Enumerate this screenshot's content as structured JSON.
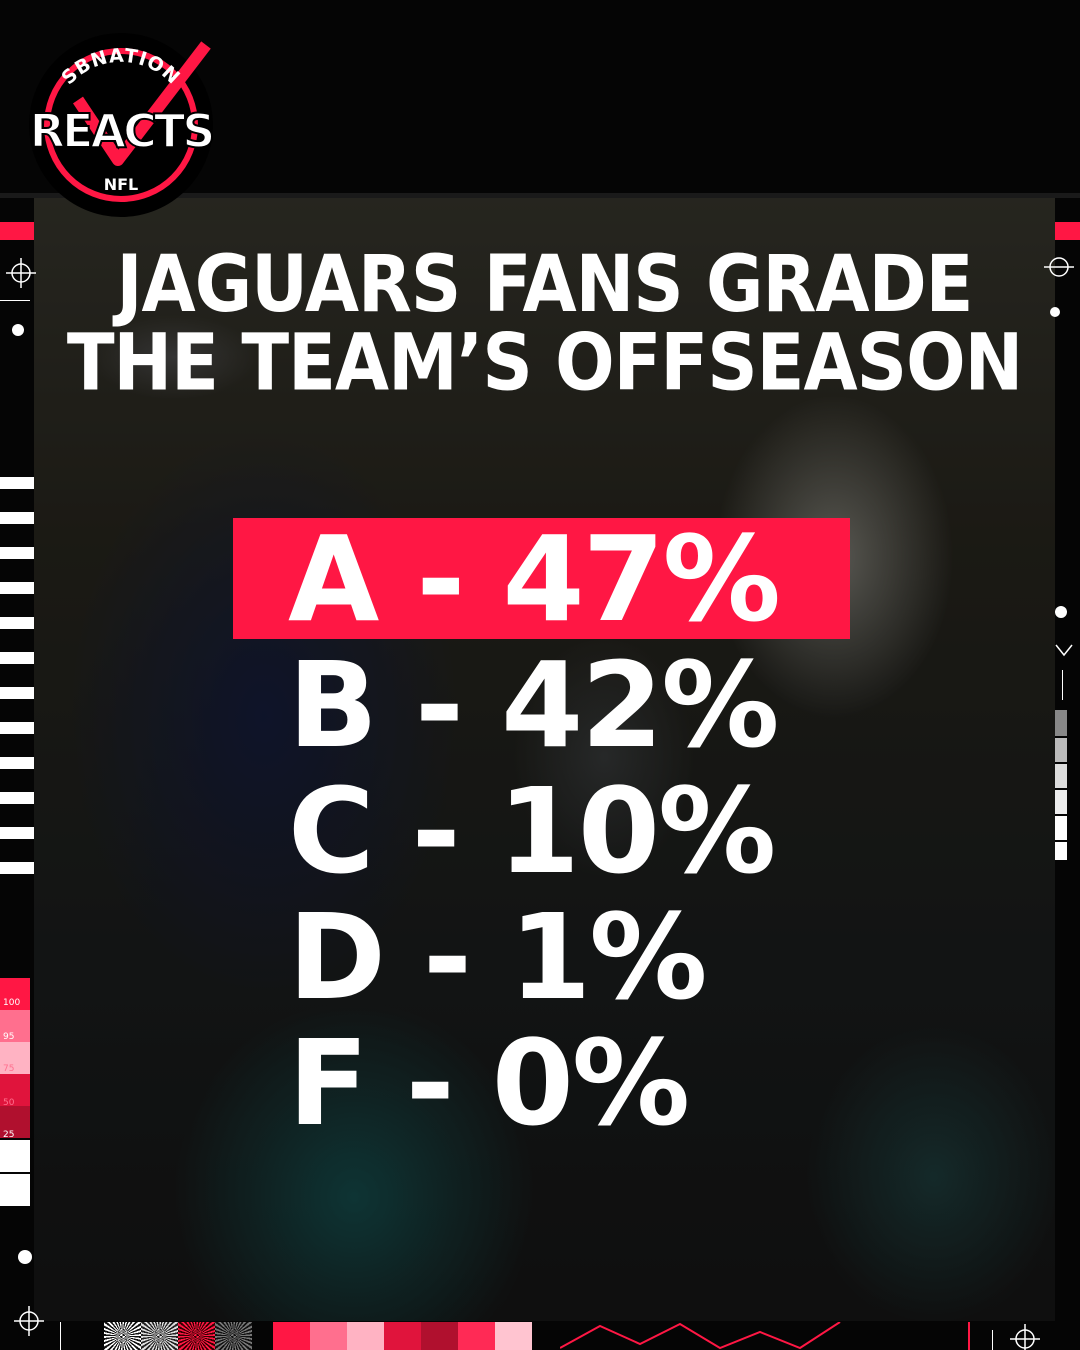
{
  "brand": {
    "top_text": "SBNATION",
    "main_text": "REACTS",
    "bottom_text": "NFL"
  },
  "headline": {
    "line1": "JAGUARS FANS GRADE",
    "line2": "THE TEAM’S OFFSEASON"
  },
  "results": [
    {
      "text": "A - 47%",
      "grade": "A",
      "percent": 47,
      "highlighted": true
    },
    {
      "text": "B - 42%",
      "grade": "B",
      "percent": 42,
      "highlighted": false
    },
    {
      "text": "C - 10%",
      "grade": "C",
      "percent": 10,
      "highlighted": false
    },
    {
      "text": "D - 1%",
      "grade": "D",
      "percent": 1,
      "highlighted": false
    },
    {
      "text": "F  - 0%",
      "grade": "F",
      "percent": 0,
      "highlighted": false
    }
  ],
  "scale_labels": [
    "100",
    "95",
    "75",
    "50",
    "25"
  ],
  "colors": {
    "accent": "#ff1744",
    "text": "#ffffff",
    "background": "#050505"
  }
}
